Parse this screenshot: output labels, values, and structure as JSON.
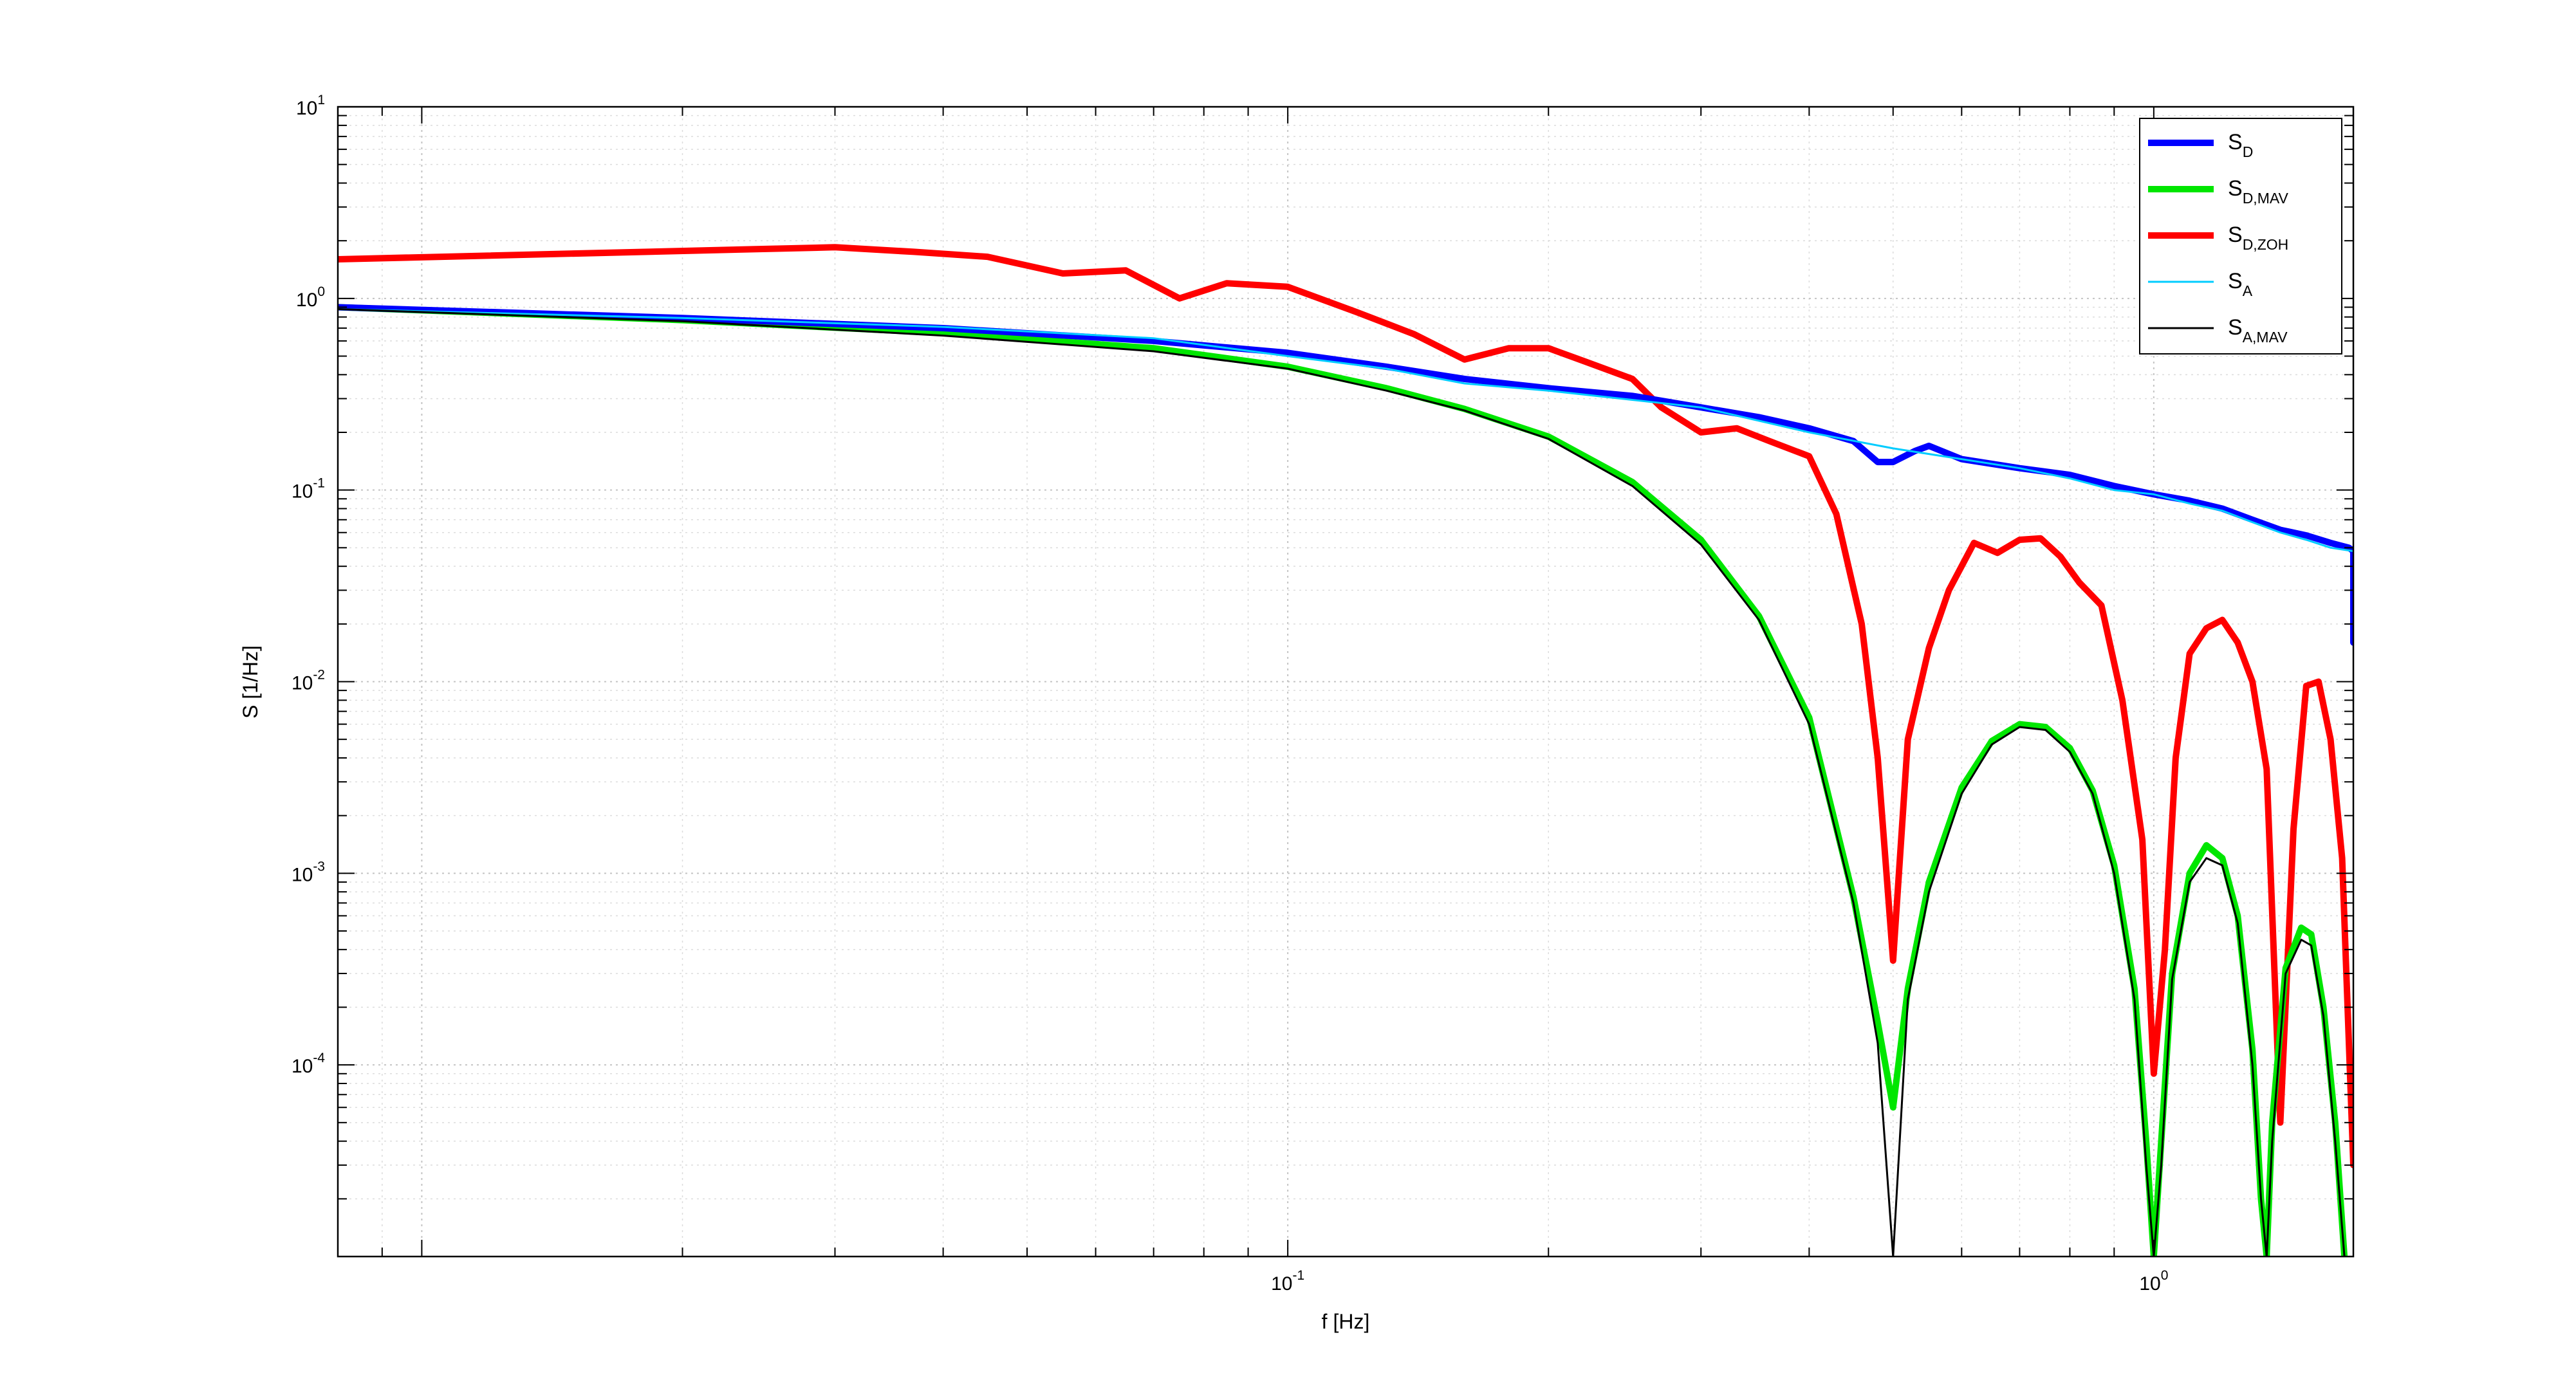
{
  "chart_data": {
    "type": "line",
    "title": "",
    "xlabel": "f [Hz]",
    "ylabel": "S [1/Hz]",
    "xscale": "log",
    "yscale": "log",
    "xlim": [
      0.008,
      1.7
    ],
    "ylim": [
      1e-05,
      10
    ],
    "grid": true,
    "minor_grid": true,
    "legend_position": "top-right",
    "x_tick_labels": [
      {
        "value": 0.1,
        "base": "10",
        "exp": "-1"
      },
      {
        "value": 1,
        "base": "10",
        "exp": "0"
      }
    ],
    "y_tick_labels": [
      {
        "value": 10,
        "base": "10",
        "exp": "1"
      },
      {
        "value": 1,
        "base": "10",
        "exp": "0"
      },
      {
        "value": 0.1,
        "base": "10",
        "exp": "-1"
      },
      {
        "value": 0.01,
        "base": "10",
        "exp": "-2"
      },
      {
        "value": 0.001,
        "base": "10",
        "exp": "-3"
      },
      {
        "value": 0.0001,
        "base": "10",
        "exp": "-4"
      }
    ],
    "series": [
      {
        "name": "S_D",
        "label_main": "S",
        "label_sub": "D",
        "color": "#0000ff",
        "width": 10,
        "points": [
          [
            0.008,
            0.9
          ],
          [
            0.02,
            0.79
          ],
          [
            0.04,
            0.7
          ],
          [
            0.07,
            0.6
          ],
          [
            0.1,
            0.52
          ],
          [
            0.13,
            0.44
          ],
          [
            0.16,
            0.38
          ],
          [
            0.2,
            0.34
          ],
          [
            0.25,
            0.31
          ],
          [
            0.3,
            0.27
          ],
          [
            0.35,
            0.24
          ],
          [
            0.4,
            0.21
          ],
          [
            0.45,
            0.18
          ],
          [
            0.48,
            0.14
          ],
          [
            0.5,
            0.14
          ],
          [
            0.53,
            0.16
          ],
          [
            0.55,
            0.17
          ],
          [
            0.6,
            0.145
          ],
          [
            0.7,
            0.13
          ],
          [
            0.8,
            0.12
          ],
          [
            0.9,
            0.105
          ],
          [
            1.0,
            0.095
          ],
          [
            1.1,
            0.088
          ],
          [
            1.2,
            0.08
          ],
          [
            1.3,
            0.07
          ],
          [
            1.4,
            0.062
          ],
          [
            1.5,
            0.058
          ],
          [
            1.6,
            0.053
          ],
          [
            1.68,
            0.05
          ],
          [
            1.7,
            0.048
          ],
          [
            1.7,
            0.016
          ]
        ]
      },
      {
        "name": "S_D,MAV",
        "label_main": "S",
        "label_sub": "D,MAV",
        "color": "#00e600",
        "width": 10,
        "points": [
          [
            0.008,
            0.9
          ],
          [
            0.02,
            0.77
          ],
          [
            0.04,
            0.66
          ],
          [
            0.07,
            0.55
          ],
          [
            0.1,
            0.44
          ],
          [
            0.13,
            0.34
          ],
          [
            0.16,
            0.265
          ],
          [
            0.2,
            0.19
          ],
          [
            0.25,
            0.11
          ],
          [
            0.3,
            0.055
          ],
          [
            0.35,
            0.022
          ],
          [
            0.4,
            0.0065
          ],
          [
            0.45,
            0.00075
          ],
          [
            0.48,
            0.000167
          ],
          [
            0.5,
            6e-05
          ],
          [
            0.52,
            0.00025
          ],
          [
            0.55,
            0.0009
          ],
          [
            0.6,
            0.0028
          ],
          [
            0.65,
            0.0049
          ],
          [
            0.7,
            0.006
          ],
          [
            0.75,
            0.0058
          ],
          [
            0.8,
            0.0045
          ],
          [
            0.85,
            0.0027
          ],
          [
            0.9,
            0.0011
          ],
          [
            0.95,
            0.00025
          ],
          [
            0.98,
            4e-05
          ],
          [
            1.0,
            1e-05
          ],
          [
            1.02,
            4e-05
          ],
          [
            1.05,
            0.0003
          ],
          [
            1.1,
            0.001
          ],
          [
            1.15,
            0.0014
          ],
          [
            1.2,
            0.0012
          ],
          [
            1.25,
            0.0006
          ],
          [
            1.3,
            0.00012
          ],
          [
            1.33,
            2e-05
          ],
          [
            1.35,
            1e-05
          ],
          [
            1.37,
            5e-05
          ],
          [
            1.42,
            0.00032
          ],
          [
            1.48,
            0.00052
          ],
          [
            1.52,
            0.00048
          ],
          [
            1.57,
            0.0002
          ],
          [
            1.62,
            5e-05
          ],
          [
            1.66,
            1e-05
          ]
        ]
      },
      {
        "name": "S_D,ZOH",
        "label_main": "S",
        "label_sub": "D,ZOH",
        "color": "#ff0000",
        "width": 10,
        "points": [
          [
            0.008,
            1.6
          ],
          [
            0.03,
            1.85
          ],
          [
            0.037,
            1.75
          ],
          [
            0.045,
            1.65
          ],
          [
            0.055,
            1.35
          ],
          [
            0.065,
            1.4
          ],
          [
            0.075,
            1.0
          ],
          [
            0.085,
            1.2
          ],
          [
            0.1,
            1.15
          ],
          [
            0.12,
            0.85
          ],
          [
            0.14,
            0.65
          ],
          [
            0.16,
            0.48
          ],
          [
            0.18,
            0.55
          ],
          [
            0.2,
            0.55
          ],
          [
            0.22,
            0.47
          ],
          [
            0.25,
            0.38
          ],
          [
            0.27,
            0.27
          ],
          [
            0.3,
            0.2
          ],
          [
            0.33,
            0.21
          ],
          [
            0.36,
            0.18
          ],
          [
            0.4,
            0.15
          ],
          [
            0.43,
            0.075
          ],
          [
            0.46,
            0.02
          ],
          [
            0.48,
            0.004
          ],
          [
            0.5,
            0.00035
          ],
          [
            0.52,
            0.005
          ],
          [
            0.55,
            0.015
          ],
          [
            0.58,
            0.03
          ],
          [
            0.62,
            0.053
          ],
          [
            0.66,
            0.047
          ],
          [
            0.7,
            0.055
          ],
          [
            0.74,
            0.056
          ],
          [
            0.78,
            0.045
          ],
          [
            0.82,
            0.033
          ],
          [
            0.87,
            0.025
          ],
          [
            0.92,
            0.008
          ],
          [
            0.97,
            0.0015
          ],
          [
            1.0,
            9e-05
          ],
          [
            1.03,
            0.0004
          ],
          [
            1.06,
            0.004
          ],
          [
            1.1,
            0.014
          ],
          [
            1.15,
            0.019
          ],
          [
            1.2,
            0.021
          ],
          [
            1.25,
            0.016
          ],
          [
            1.3,
            0.01
          ],
          [
            1.35,
            0.0035
          ],
          [
            1.4,
            5e-05
          ],
          [
            1.45,
            0.0017
          ],
          [
            1.5,
            0.0095
          ],
          [
            1.55,
            0.01
          ],
          [
            1.6,
            0.005
          ],
          [
            1.65,
            0.0012
          ],
          [
            1.7,
            3e-05
          ]
        ]
      },
      {
        "name": "S_A",
        "label_main": "S",
        "label_sub": "A",
        "color": "#00ccff",
        "width": 3,
        "points": [
          [
            0.008,
            0.88
          ],
          [
            0.02,
            0.79
          ],
          [
            0.04,
            0.71
          ],
          [
            0.07,
            0.62
          ],
          [
            0.1,
            0.5
          ],
          [
            0.13,
            0.43
          ],
          [
            0.16,
            0.36
          ],
          [
            0.2,
            0.33
          ],
          [
            0.3,
            0.27
          ],
          [
            0.4,
            0.2
          ],
          [
            0.5,
            0.165
          ],
          [
            0.6,
            0.145
          ],
          [
            0.7,
            0.13
          ],
          [
            0.8,
            0.115
          ],
          [
            0.9,
            0.1
          ],
          [
            1.0,
            0.095
          ],
          [
            1.1,
            0.085
          ],
          [
            1.2,
            0.078
          ],
          [
            1.3,
            0.068
          ],
          [
            1.4,
            0.06
          ],
          [
            1.5,
            0.055
          ],
          [
            1.6,
            0.05
          ],
          [
            1.7,
            0.048
          ]
        ]
      },
      {
        "name": "S_A,MAV",
        "label_main": "S",
        "label_sub": "A,MAV",
        "color": "#000000",
        "width": 3,
        "points": [
          [
            0.008,
            0.88
          ],
          [
            0.02,
            0.76
          ],
          [
            0.04,
            0.64
          ],
          [
            0.07,
            0.53
          ],
          [
            0.1,
            0.43
          ],
          [
            0.13,
            0.33
          ],
          [
            0.16,
            0.26
          ],
          [
            0.2,
            0.185
          ],
          [
            0.25,
            0.105
          ],
          [
            0.3,
            0.052
          ],
          [
            0.35,
            0.021
          ],
          [
            0.4,
            0.006
          ],
          [
            0.45,
            0.0007
          ],
          [
            0.48,
            0.00013
          ],
          [
            0.5,
            1e-05
          ],
          [
            0.52,
            0.00022
          ],
          [
            0.55,
            0.0008
          ],
          [
            0.6,
            0.0026
          ],
          [
            0.65,
            0.0047
          ],
          [
            0.7,
            0.0058
          ],
          [
            0.75,
            0.0056
          ],
          [
            0.8,
            0.0043
          ],
          [
            0.85,
            0.0026
          ],
          [
            0.9,
            0.001
          ],
          [
            0.95,
            0.00022
          ],
          [
            0.98,
            3e-05
          ],
          [
            1.0,
            1e-05
          ],
          [
            1.02,
            3e-05
          ],
          [
            1.05,
            0.00028
          ],
          [
            1.1,
            0.0009
          ],
          [
            1.15,
            0.0012
          ],
          [
            1.2,
            0.0011
          ],
          [
            1.25,
            0.00055
          ],
          [
            1.3,
            0.0001
          ],
          [
            1.33,
            2e-05
          ],
          [
            1.35,
            1e-05
          ],
          [
            1.37,
            4e-05
          ],
          [
            1.42,
            0.0003
          ],
          [
            1.48,
            0.00045
          ],
          [
            1.52,
            0.00042
          ],
          [
            1.57,
            0.00018
          ],
          [
            1.62,
            4e-05
          ],
          [
            1.66,
            1e-05
          ]
        ]
      }
    ]
  }
}
